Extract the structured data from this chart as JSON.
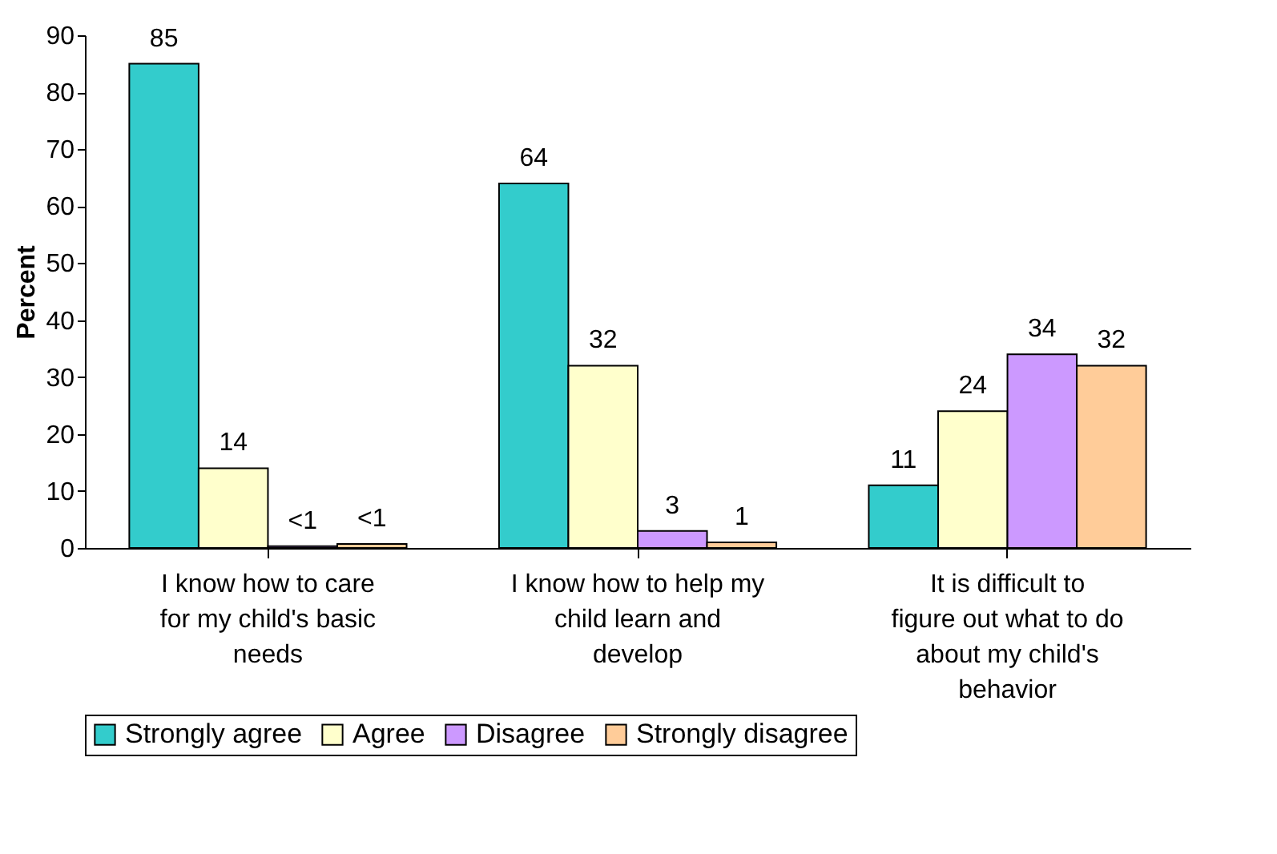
{
  "chart_data": {
    "type": "bar",
    "ylabel": "Percent",
    "categories": [
      "I know how to care for my child's basic needs",
      "I know how to help my child learn and develop",
      "It is difficult to figure out what to do about my child's behavior"
    ],
    "series": [
      {
        "name": "Strongly agree",
        "color": "#33cccc",
        "values": [
          85,
          64,
          11
        ],
        "value_labels": [
          "85",
          "64",
          "11"
        ]
      },
      {
        "name": "Agree",
        "color": "#ffffcc",
        "values": [
          14,
          32,
          24
        ],
        "value_labels": [
          "14",
          "32",
          "24"
        ]
      },
      {
        "name": "Disagree",
        "color": "#cc99ff",
        "values": [
          0.3,
          3,
          34
        ],
        "value_labels": [
          "<1",
          "3",
          "34"
        ]
      },
      {
        "name": "Strongly disagree",
        "color": "#ffcc99",
        "values": [
          0.7,
          1,
          32
        ],
        "value_labels": [
          "<1",
          "1",
          "32"
        ]
      }
    ],
    "ylim": [
      0,
      90
    ],
    "yticks": [
      0,
      10,
      20,
      30,
      40,
      50,
      60,
      70,
      80,
      90
    ],
    "grid": false,
    "legend": "bottom"
  }
}
